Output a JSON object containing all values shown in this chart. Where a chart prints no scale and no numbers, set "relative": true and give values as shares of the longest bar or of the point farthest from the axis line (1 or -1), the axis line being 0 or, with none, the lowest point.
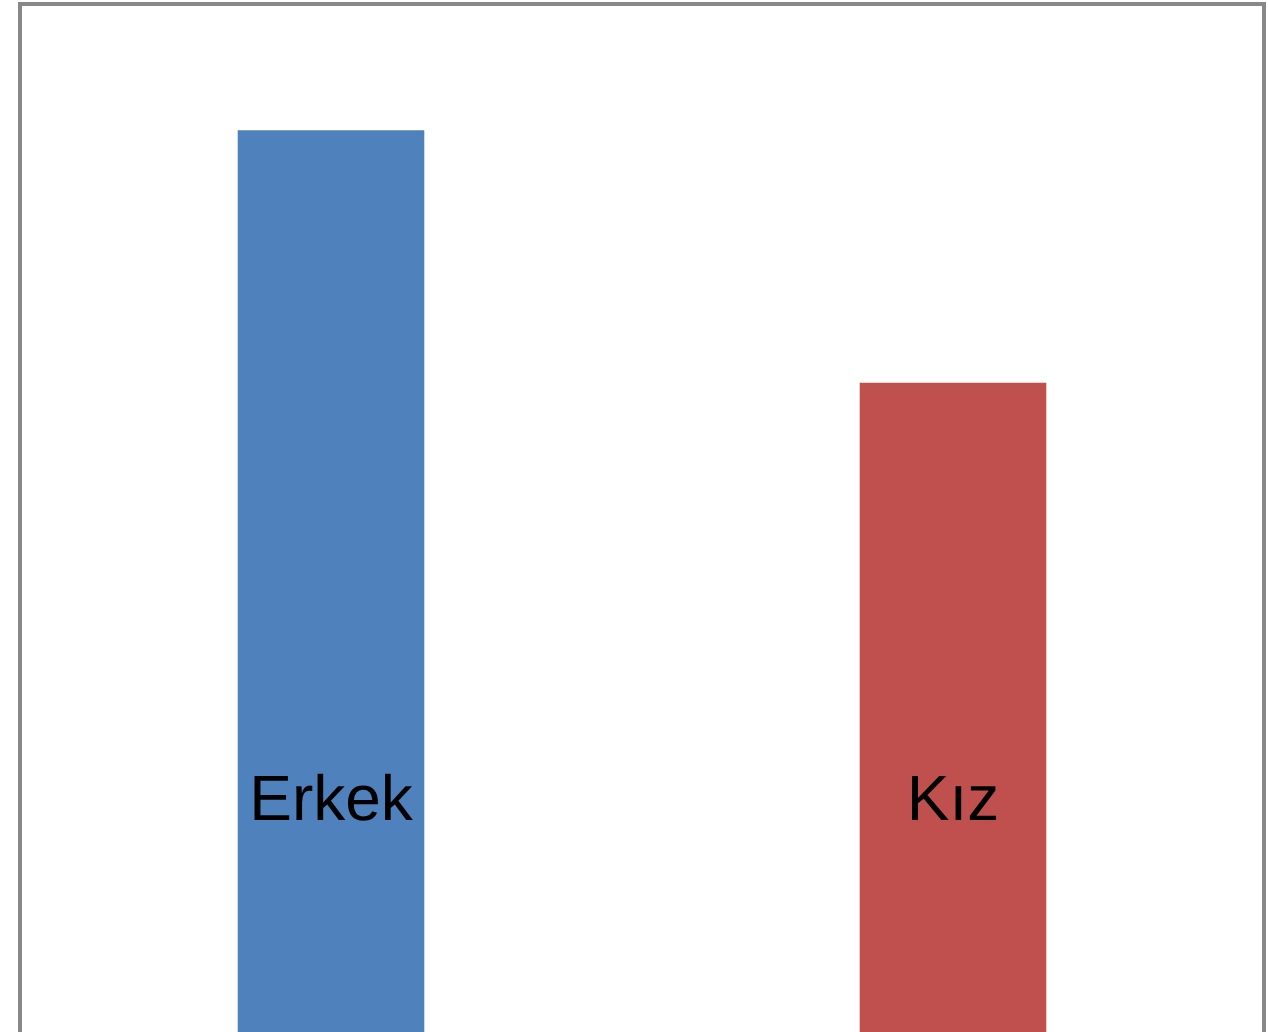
{
  "chart_data": {
    "type": "bar",
    "relative": true,
    "categories": [
      "Erkek",
      "Kız"
    ],
    "values": [
      1,
      0.72
    ],
    "colors": [
      "#4f81bd",
      "#c0504d"
    ]
  }
}
